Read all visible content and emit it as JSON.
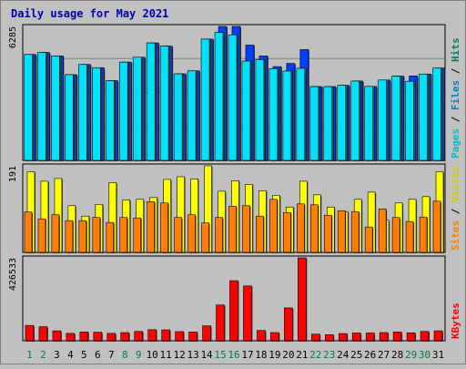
{
  "chart_data": {
    "type": "bar",
    "title": "Daily usage for May 2021",
    "categories": [
      "1",
      "2",
      "3",
      "4",
      "5",
      "6",
      "7",
      "8",
      "9",
      "10",
      "11",
      "12",
      "13",
      "14",
      "15",
      "16",
      "17",
      "18",
      "19",
      "20",
      "21",
      "22",
      "23",
      "24",
      "25",
      "26",
      "27",
      "28",
      "29",
      "30",
      "31"
    ],
    "weekend_days": [
      "1",
      "2",
      "8",
      "9",
      "15",
      "16",
      "22",
      "23",
      "29",
      "30"
    ],
    "panels": [
      {
        "id": "hits_files_pages",
        "ymax_label": "6285",
        "ymax": 6285,
        "right_labels": [
          "Pages",
          "Files",
          "Hits"
        ],
        "series": [
          {
            "name": "Hits",
            "color": "#0040ff",
            "values": [
              4970,
              5060,
              4900,
              4020,
              4500,
              4350,
              3740,
              4610,
              4840,
              5510,
              5360,
              4060,
              4200,
              5690,
              6285,
              6285,
              5410,
              4900,
              4400,
              4550,
              5200,
              3460,
              3460,
              3520,
              3720,
              3470,
              3770,
              3950,
              3960,
              4050,
              4330
            ]
          },
          {
            "name": "Files",
            "color": "#00c0ff",
            "values": [
              4970,
              5060,
              4900,
              4020,
              4500,
              4350,
              3740,
              4610,
              4840,
              5510,
              5360,
              4060,
              4200,
              5690,
              6000,
              5890,
              4660,
              4730,
              4300,
              4190,
              4320,
              3460,
              3460,
              3520,
              3720,
              3470,
              3770,
              3950,
              3710,
              4050,
              4330
            ]
          },
          {
            "name": "Pages",
            "color": "#00e0ff",
            "values": [
              4970,
              5060,
              4900,
              4020,
              4500,
              4350,
              3740,
              4610,
              4840,
              5510,
              5360,
              4060,
              4200,
              5690,
              6000,
              5890,
              4660,
              4730,
              4300,
              4190,
              4320,
              3460,
              3460,
              3520,
              3720,
              3470,
              3770,
              3950,
              3710,
              4050,
              4330
            ]
          }
        ]
      },
      {
        "id": "visits_sites",
        "ymax_label": "191",
        "ymax": 191,
        "right_labels": [
          "Sites",
          "Visits"
        ],
        "series": [
          {
            "name": "Visits",
            "color": "#ffff00",
            "values": [
              178,
              157,
              163,
              103,
              80,
              106,
              154,
              116,
              117,
              121,
              161,
              167,
              162,
              191,
              135,
              158,
              150,
              136,
              126,
              100,
              157,
              127,
              100,
              90,
              117,
              133,
              71,
              109,
              117,
              123,
              178
            ]
          },
          {
            "name": "Sites",
            "color": "#ff8000",
            "values": [
              89,
              74,
              83,
              70,
              70,
              77,
              66,
              77,
              76,
              112,
              109,
              77,
              83,
              65,
              77,
              102,
              103,
              80,
              117,
              88,
              107,
              105,
              82,
              92,
              90,
              56,
              96,
              77,
              68,
              78,
              113
            ]
          }
        ]
      },
      {
        "id": "kbytes",
        "ymax_label": "426533",
        "ymax": 426533,
        "right_labels": [
          "KBytes"
        ],
        "series": [
          {
            "name": "KBytes",
            "color": "#ff0000",
            "values": [
              79000,
              72000,
              51000,
              38000,
              45000,
              44000,
              38000,
              42000,
              48000,
              57000,
              56000,
              47000,
              45000,
              77000,
              184000,
              309000,
              282000,
              53000,
              42000,
              169000,
              426533,
              34000,
              31000,
              37000,
              40000,
              40000,
              42000,
              45000,
              41000,
              48000,
              51000
            ]
          }
        ]
      }
    ]
  }
}
